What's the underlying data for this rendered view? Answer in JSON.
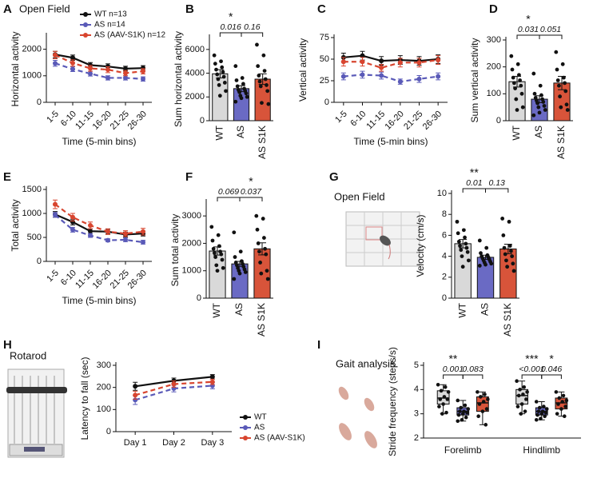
{
  "chart_data": [
    {
      "type": "line",
      "panel": "A",
      "title": "Open Field",
      "xlabel": "Time (5-min bins)",
      "ylabel": "Horizontal activity",
      "categories": [
        "1-5",
        "6-10",
        "11-15",
        "16-20",
        "21-25",
        "26-30"
      ],
      "series": [
        {
          "name": "WT n=13",
          "color": "#111111",
          "values": [
            1800,
            1680,
            1400,
            1350,
            1270,
            1290
          ],
          "errors": [
            120,
            100,
            100,
            100,
            90,
            90
          ]
        },
        {
          "name": "AS n=14",
          "color": "#5a5ab8",
          "values": [
            1470,
            1250,
            1080,
            920,
            920,
            880
          ],
          "errors": [
            110,
            90,
            90,
            80,
            80,
            80
          ]
        },
        {
          "name": "AS (AAV-S1K) n=12",
          "color": "#d8452f",
          "values": [
            1780,
            1480,
            1280,
            1230,
            1100,
            1170
          ],
          "errors": [
            140,
            120,
            110,
            110,
            100,
            100
          ]
        }
      ],
      "ylim": [
        0,
        2500
      ],
      "yticks": [
        0,
        1000,
        2000
      ],
      "legend": "upper right"
    },
    {
      "type": "bar",
      "panel": "B",
      "ylabel": "Sum horizontal activity",
      "categories": [
        "WT",
        "AS",
        "AS S1K"
      ],
      "colors": [
        "#d9d9d9",
        "#6a6ac4",
        "#d8543a"
      ],
      "values": [
        3950,
        2700,
        3500
      ],
      "errors": [
        350,
        250,
        450
      ],
      "points": [
        [
          5500,
          5000,
          4800,
          4500,
          4300,
          4100,
          3900,
          3700,
          3500,
          3200,
          3000,
          2500,
          2100
        ],
        [
          4600,
          3600,
          3400,
          3100,
          2900,
          2700,
          2600,
          2500,
          2400,
          2300,
          2100,
          2000,
          1900,
          1600
        ],
        [
          6400,
          5500,
          4600,
          4200,
          3800,
          3500,
          3300,
          3000,
          2900,
          2500,
          1500,
          1400
        ]
      ],
      "comparisons": [
        {
          "groups": [
            0,
            1
          ],
          "p": "0.016",
          "stars": "*"
        },
        {
          "groups": [
            1,
            2
          ],
          "p": "0.16"
        }
      ],
      "ylim": [
        0,
        7000
      ],
      "yticks": [
        0,
        2000,
        4000,
        6000
      ]
    },
    {
      "type": "line",
      "panel": "C",
      "xlabel": "Time (5-min bins)",
      "ylabel": "Vertical activity",
      "categories": [
        "1-5",
        "6-10",
        "11-15",
        "16-20",
        "21-25",
        "26-30"
      ],
      "series": [
        {
          "color": "#111111",
          "values": [
            52,
            54,
            48,
            49,
            48,
            50
          ],
          "errors": [
            5,
            5,
            5,
            5,
            5,
            5
          ]
        },
        {
          "color": "#5a5ab8",
          "values": [
            30,
            32,
            31,
            24,
            27,
            30
          ],
          "errors": [
            4,
            4,
            4,
            3,
            4,
            4
          ]
        },
        {
          "color": "#d8452f",
          "values": [
            47,
            47,
            40,
            46,
            46,
            49
          ],
          "errors": [
            5,
            5,
            4,
            5,
            5,
            5
          ]
        }
      ],
      "ylim": [
        0,
        75
      ],
      "yticks": [
        0,
        25,
        50,
        75
      ]
    },
    {
      "type": "bar",
      "panel": "D",
      "ylabel": "Sum vertical activity",
      "categories": [
        "WT",
        "AS",
        "AS S1K"
      ],
      "colors": [
        "#d9d9d9",
        "#6a6ac4",
        "#d8543a"
      ],
      "values": [
        145,
        80,
        140
      ],
      "errors": [
        20,
        13,
        25
      ],
      "points": [
        [
          240,
          210,
          190,
          170,
          160,
          150,
          140,
          130,
          120,
          100,
          80,
          50,
          40
        ],
        [
          175,
          130,
          100,
          95,
          85,
          80,
          75,
          70,
          65,
          55,
          50,
          40,
          30,
          20
        ],
        [
          255,
          210,
          190,
          160,
          150,
          140,
          130,
          110,
          90,
          60,
          50,
          40
        ]
      ],
      "comparisons": [
        {
          "groups": [
            0,
            1
          ],
          "p": "0.031",
          "stars": "*"
        },
        {
          "groups": [
            1,
            2
          ],
          "p": "0.051"
        }
      ],
      "ylim": [
        0,
        300
      ],
      "yticks": [
        0,
        100,
        200,
        300
      ]
    },
    {
      "type": "line",
      "panel": "E",
      "xlabel": "Time (5-min bins)",
      "ylabel": "Total activity",
      "categories": [
        "1-5",
        "6-10",
        "11-15",
        "16-20",
        "21-25",
        "26-30"
      ],
      "series": [
        {
          "color": "#111111",
          "values": [
            980,
            820,
            630,
            620,
            560,
            580
          ],
          "errors": [
            60,
            60,
            50,
            50,
            50,
            50
          ]
        },
        {
          "color": "#5a5ab8",
          "values": [
            970,
            660,
            540,
            440,
            450,
            400
          ],
          "errors": [
            50,
            50,
            40,
            30,
            40,
            40
          ]
        },
        {
          "color": "#d8452f",
          "values": [
            1190,
            920,
            750,
            620,
            580,
            620
          ],
          "errors": [
            90,
            80,
            70,
            60,
            60,
            70
          ]
        }
      ],
      "ylim": [
        0,
        1500
      ],
      "yticks": [
        0,
        500,
        1000,
        1500
      ]
    },
    {
      "type": "bar",
      "panel": "F",
      "ylabel": "Sum total activity",
      "categories": [
        "WT",
        "AS",
        "AS S1K"
      ],
      "colors": [
        "#d9d9d9",
        "#6a6ac4",
        "#d8543a"
      ],
      "values": [
        1720,
        1250,
        1800
      ],
      "errors": [
        150,
        90,
        220
      ],
      "points": [
        [
          2600,
          2300,
          2100,
          1900,
          1800,
          1700,
          1650,
          1600,
          1500,
          1400,
          1200,
          1100,
          1000
        ],
        [
          2400,
          1700,
          1500,
          1350,
          1300,
          1250,
          1200,
          1150,
          1100,
          1050,
          1000,
          950,
          900,
          700
        ],
        [
          3000,
          2900,
          2500,
          2200,
          2000,
          1800,
          1700,
          1600,
          1300,
          1000,
          900,
          700
        ]
      ],
      "comparisons": [
        {
          "groups": [
            0,
            1
          ],
          "p": "0.069"
        },
        {
          "groups": [
            1,
            2
          ],
          "p": "0.037",
          "stars": "*"
        }
      ],
      "ylim": [
        0,
        3500
      ],
      "yticks": [
        0,
        1000,
        2000,
        3000
      ]
    },
    {
      "type": "bar",
      "panel": "G",
      "title": "Open Field",
      "ylabel": "Velocity (cm/s)",
      "categories": [
        "WT",
        "AS",
        "AS S1K"
      ],
      "colors": [
        "#d9d9d9",
        "#6a6ac4",
        "#d8543a"
      ],
      "values": [
        5.2,
        3.9,
        4.7
      ],
      "errors": [
        0.4,
        0.2,
        0.45
      ],
      "points": [
        [
          7.3,
          6.5,
          6.2,
          5.8,
          5.4,
          5.2,
          5.0,
          4.8,
          4.6,
          4.4,
          4.0,
          3.6,
          3.0
        ],
        [
          5.5,
          4.8,
          4.3,
          4.1,
          4.0,
          3.9,
          3.8,
          3.7,
          3.6,
          3.5,
          3.4,
          3.3,
          3.2,
          3.1
        ],
        [
          7.6,
          7.3,
          6.0,
          5.0,
          4.8,
          4.5,
          4.2,
          4.0,
          3.6,
          3.3,
          3.0,
          2.6
        ]
      ],
      "comparisons": [
        {
          "groups": [
            0,
            1
          ],
          "p": "0.01",
          "stars": "**"
        },
        {
          "groups": [
            1,
            2
          ],
          "p": "0.13"
        }
      ],
      "ylim": [
        0,
        10
      ],
      "yticks": [
        0,
        2,
        4,
        6,
        8,
        10
      ]
    },
    {
      "type": "line",
      "panel": "H",
      "title": "Rotarod",
      "ylabel": "Latency to fall (sec)",
      "categories": [
        "Day 1",
        "Day 2",
        "Day 3"
      ],
      "series": [
        {
          "name": "WT",
          "color": "#111111",
          "values": [
            205,
            230,
            248
          ],
          "errors": [
            18,
            12,
            10
          ]
        },
        {
          "name": "AS",
          "color": "#5a5ab8",
          "values": [
            143,
            195,
            208
          ],
          "errors": [
            20,
            15,
            14
          ]
        },
        {
          "name": "AS (AAV-S1K)",
          "color": "#d8452f",
          "values": [
            165,
            215,
            225
          ],
          "errors": [
            18,
            14,
            12
          ]
        }
      ],
      "ylim": [
        0,
        300
      ],
      "yticks": [
        0,
        100,
        200,
        300
      ],
      "legend": "right"
    },
    {
      "type": "box",
      "panel": "I",
      "title": "Gait analysis",
      "ylabel": "Stride frequency (steps/s)",
      "categories": [
        "Forelimb",
        "Hindlimb"
      ],
      "series": [
        {
          "color": "#d9d9d9",
          "min": [
            3.0,
            3.0
          ],
          "q1": [
            3.4,
            3.4
          ],
          "median": [
            3.65,
            3.75
          ],
          "q3": [
            3.95,
            4.0
          ],
          "max": [
            4.2,
            4.35
          ],
          "points": [
            [
              4.2,
              4.1,
              3.95,
              3.9,
              3.7,
              3.6,
              3.6,
              3.4,
              3.3,
              3.05,
              3.0
            ],
            [
              4.35,
              4.1,
              4.0,
              3.9,
              3.8,
              3.75,
              3.6,
              3.4,
              3.3,
              3.1,
              3.0
            ]
          ]
        },
        {
          "color": "#6a6ac4",
          "min": [
            2.7,
            2.75
          ],
          "q1": [
            2.95,
            2.95
          ],
          "median": [
            3.1,
            3.1
          ],
          "q3": [
            3.25,
            3.25
          ],
          "max": [
            3.55,
            3.5
          ],
          "points": [
            [
              3.55,
              3.35,
              3.25,
              3.2,
              3.1,
              3.1,
              3.05,
              3.0,
              2.95,
              2.85,
              2.75,
              2.7
            ],
            [
              3.5,
              3.3,
              3.25,
              3.2,
              3.1,
              3.1,
              3.05,
              3.0,
              2.95,
              2.9,
              2.8,
              2.75
            ]
          ]
        },
        {
          "color": "#d8543a",
          "min": [
            2.55,
            2.9
          ],
          "q1": [
            3.1,
            3.2
          ],
          "median": [
            3.45,
            3.45
          ],
          "q3": [
            3.7,
            3.65
          ],
          "max": [
            3.9,
            3.9
          ],
          "points": [
            [
              3.9,
              3.8,
              3.7,
              3.6,
              3.5,
              3.4,
              3.2,
              3.1,
              2.9,
              2.55
            ],
            [
              3.9,
              3.75,
              3.65,
              3.55,
              3.5,
              3.4,
              3.3,
              3.2,
              3.0,
              2.9
            ]
          ]
        }
      ],
      "comparisons": [
        {
          "category": 0,
          "groups": [
            0,
            1
          ],
          "p": "0.001",
          "stars": "**"
        },
        {
          "category": 0,
          "groups": [
            1,
            2
          ],
          "p": "0.083"
        },
        {
          "category": 1,
          "groups": [
            0,
            1
          ],
          "p": "<0.001",
          "stars": "***"
        },
        {
          "category": 1,
          "groups": [
            1,
            2
          ],
          "p": "0.046",
          "stars": "*"
        }
      ],
      "ylim": [
        2,
        5
      ],
      "yticks": [
        2,
        3,
        4,
        5
      ]
    }
  ]
}
